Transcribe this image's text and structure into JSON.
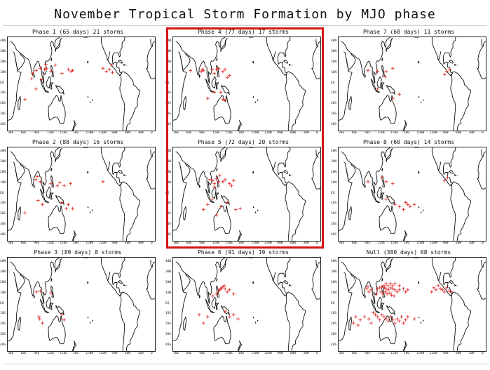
{
  "title": "November Tropical Storm Formation by MJO phase",
  "marker_color": "#e02020",
  "highlight_color": "#d41414",
  "lat_ticks": [
    "40N",
    "30N",
    "20N",
    "10N",
    "EQ",
    "10S",
    "20S",
    "30S",
    "40S"
  ],
  "lon_ticks": [
    "30E",
    "60E",
    "90E",
    "120E",
    "150E",
    "180",
    "150W",
    "120W",
    "90W",
    "60W",
    "30W",
    "0"
  ],
  "panels": [
    {
      "label": "Phase 1 (65 days) 21 storms",
      "highlighted": false,
      "storms": [
        [
          86,
          13
        ],
        [
          95,
          15
        ],
        [
          108,
          19
        ],
        [
          105,
          14
        ],
        [
          78,
          10
        ],
        [
          98,
          4
        ],
        [
          120,
          12
        ],
        [
          145,
          10
        ],
        [
          110,
          15
        ],
        [
          130,
          18
        ],
        [
          75,
          5
        ],
        [
          85,
          -5
        ],
        [
          160,
          14
        ],
        [
          170,
          13
        ],
        [
          166,
          12
        ],
        [
          240,
          15
        ],
        [
          255,
          14
        ],
        [
          260,
          18
        ],
        [
          262,
          11
        ],
        [
          248,
          12
        ],
        [
          60,
          -15
        ]
      ]
    },
    {
      "label": "Phase 4 (77 days) 17 storms",
      "highlighted": false,
      "storms": [
        [
          87,
          14
        ],
        [
          90,
          13
        ],
        [
          85,
          12
        ],
        [
          110,
          14
        ],
        [
          120,
          14
        ],
        [
          135,
          12
        ],
        [
          125,
          15
        ],
        [
          140,
          14
        ],
        [
          115,
          10
        ],
        [
          130,
          -8
        ],
        [
          115,
          -8
        ],
        [
          135,
          -15
        ],
        [
          150,
          8
        ],
        [
          100,
          -14
        ],
        [
          60,
          13
        ],
        [
          140,
          -16
        ],
        [
          145,
          6
        ]
      ]
    },
    {
      "label": "Phase 7 (68 days) 11 storms",
      "highlighted": false,
      "storms": [
        [
          88,
          13
        ],
        [
          110,
          12
        ],
        [
          130,
          12
        ],
        [
          145,
          15
        ],
        [
          128,
          7
        ],
        [
          110,
          -5
        ],
        [
          145,
          -14
        ],
        [
          160,
          -10
        ],
        [
          270,
          12
        ],
        [
          265,
          9
        ],
        [
          277,
          14
        ]
      ]
    },
    {
      "label": "Phase 2 (88 days) 16 storms",
      "highlighted": false,
      "storms": [
        [
          85,
          14
        ],
        [
          88,
          17
        ],
        [
          95,
          12
        ],
        [
          120,
          10
        ],
        [
          140,
          11
        ],
        [
          150,
          8
        ],
        [
          165,
          10
        ],
        [
          155,
          -14
        ],
        [
          160,
          -10
        ],
        [
          170,
          -14
        ],
        [
          100,
          -10
        ],
        [
          90,
          -6
        ],
        [
          60,
          -18
        ],
        [
          145,
          -8
        ],
        [
          135,
          8
        ],
        [
          240,
          12
        ]
      ]
    },
    {
      "label": "Phase 5 (72 days) 20 storms",
      "highlighted": false,
      "storms": [
        [
          105,
          14
        ],
        [
          112,
          13
        ],
        [
          120,
          15
        ],
        [
          125,
          12
        ],
        [
          128,
          18
        ],
        [
          115,
          10
        ],
        [
          135,
          12
        ],
        [
          150,
          10
        ],
        [
          155,
          8
        ],
        [
          160,
          13
        ],
        [
          140,
          14
        ],
        [
          145,
          -8
        ],
        [
          130,
          -12
        ],
        [
          110,
          -5
        ],
        [
          100,
          -10
        ],
        [
          120,
          -20
        ],
        [
          90,
          -15
        ],
        [
          175,
          -14
        ],
        [
          165,
          -15
        ],
        [
          115,
          7
        ]
      ]
    },
    {
      "label": "Phase 8 (60 days) 14 storms",
      "highlighted": false,
      "storms": [
        [
          88,
          12
        ],
        [
          120,
          16
        ],
        [
          130,
          12
        ],
        [
          145,
          10
        ],
        [
          150,
          -10
        ],
        [
          160,
          -12
        ],
        [
          170,
          -15
        ],
        [
          175,
          -8
        ],
        [
          180,
          -10
        ],
        [
          185,
          -12
        ],
        [
          195,
          -10
        ],
        [
          130,
          -5
        ],
        [
          265,
          13
        ],
        [
          272,
          16
        ]
      ]
    },
    {
      "label": "Phase 3 (89 days) 8 storms",
      "highlighted": false,
      "storms": [
        [
          87,
          12
        ],
        [
          95,
          13
        ],
        [
          120,
          11
        ],
        [
          92,
          -12
        ],
        [
          94,
          -14
        ],
        [
          100,
          -18
        ],
        [
          145,
          -10
        ],
        [
          150,
          -15
        ]
      ]
    },
    {
      "label": "Phase 6 (91 days) 19 storms",
      "highlighted": false,
      "storms": [
        [
          130,
          15
        ],
        [
          132,
          16
        ],
        [
          128,
          14
        ],
        [
          135,
          17
        ],
        [
          125,
          13
        ],
        [
          140,
          15
        ],
        [
          145,
          12
        ],
        [
          138,
          18
        ],
        [
          150,
          14
        ],
        [
          120,
          10
        ],
        [
          112,
          8
        ],
        [
          140,
          -7
        ],
        [
          150,
          -12
        ],
        [
          160,
          -10
        ],
        [
          170,
          -14
        ],
        [
          100,
          -12
        ],
        [
          90,
          -18
        ],
        [
          80,
          -10
        ],
        [
          160,
          10
        ]
      ]
    },
    {
      "label": "Null (380 days) 68 storms",
      "highlighted": false,
      "storms": [
        [
          85,
          15
        ],
        [
          88,
          17
        ],
        [
          90,
          12
        ],
        [
          95,
          14
        ],
        [
          110,
          15
        ],
        [
          115,
          16
        ],
        [
          120,
          17
        ],
        [
          125,
          18
        ],
        [
          130,
          15
        ],
        [
          135,
          14
        ],
        [
          140,
          16
        ],
        [
          145,
          15
        ],
        [
          150,
          14
        ],
        [
          128,
          12
        ],
        [
          132,
          10
        ],
        [
          138,
          11
        ],
        [
          142,
          9
        ],
        [
          148,
          8
        ],
        [
          155,
          12
        ],
        [
          160,
          14
        ],
        [
          118,
          12
        ],
        [
          122,
          10
        ],
        [
          108,
          10
        ],
        [
          126,
          16
        ],
        [
          134,
          18
        ],
        [
          130,
          20
        ],
        [
          140,
          20
        ],
        [
          150,
          20
        ],
        [
          145,
          18
        ],
        [
          160,
          18
        ],
        [
          170,
          15
        ],
        [
          175,
          12
        ],
        [
          180,
          14
        ],
        [
          100,
          -8
        ],
        [
          105,
          -10
        ],
        [
          110,
          -12
        ],
        [
          115,
          -15
        ],
        [
          120,
          -10
        ],
        [
          125,
          -12
        ],
        [
          130,
          -14
        ],
        [
          135,
          -16
        ],
        [
          140,
          -12
        ],
        [
          145,
          -15
        ],
        [
          150,
          -18
        ],
        [
          155,
          -14
        ],
        [
          160,
          -16
        ],
        [
          165,
          -12
        ],
        [
          170,
          -18
        ],
        [
          175,
          -15
        ],
        [
          180,
          -12
        ],
        [
          90,
          -14
        ],
        [
          95,
          -18
        ],
        [
          80,
          -12
        ],
        [
          70,
          -15
        ],
        [
          60,
          -12
        ],
        [
          55,
          -18
        ],
        [
          65,
          -20
        ],
        [
          240,
          16
        ],
        [
          245,
          14
        ],
        [
          250,
          18
        ],
        [
          255,
          15
        ],
        [
          260,
          14
        ],
        [
          265,
          12
        ],
        [
          270,
          16
        ],
        [
          275,
          13
        ],
        [
          280,
          12
        ],
        [
          235,
          12
        ],
        [
          195,
          -14
        ]
      ]
    }
  ]
}
